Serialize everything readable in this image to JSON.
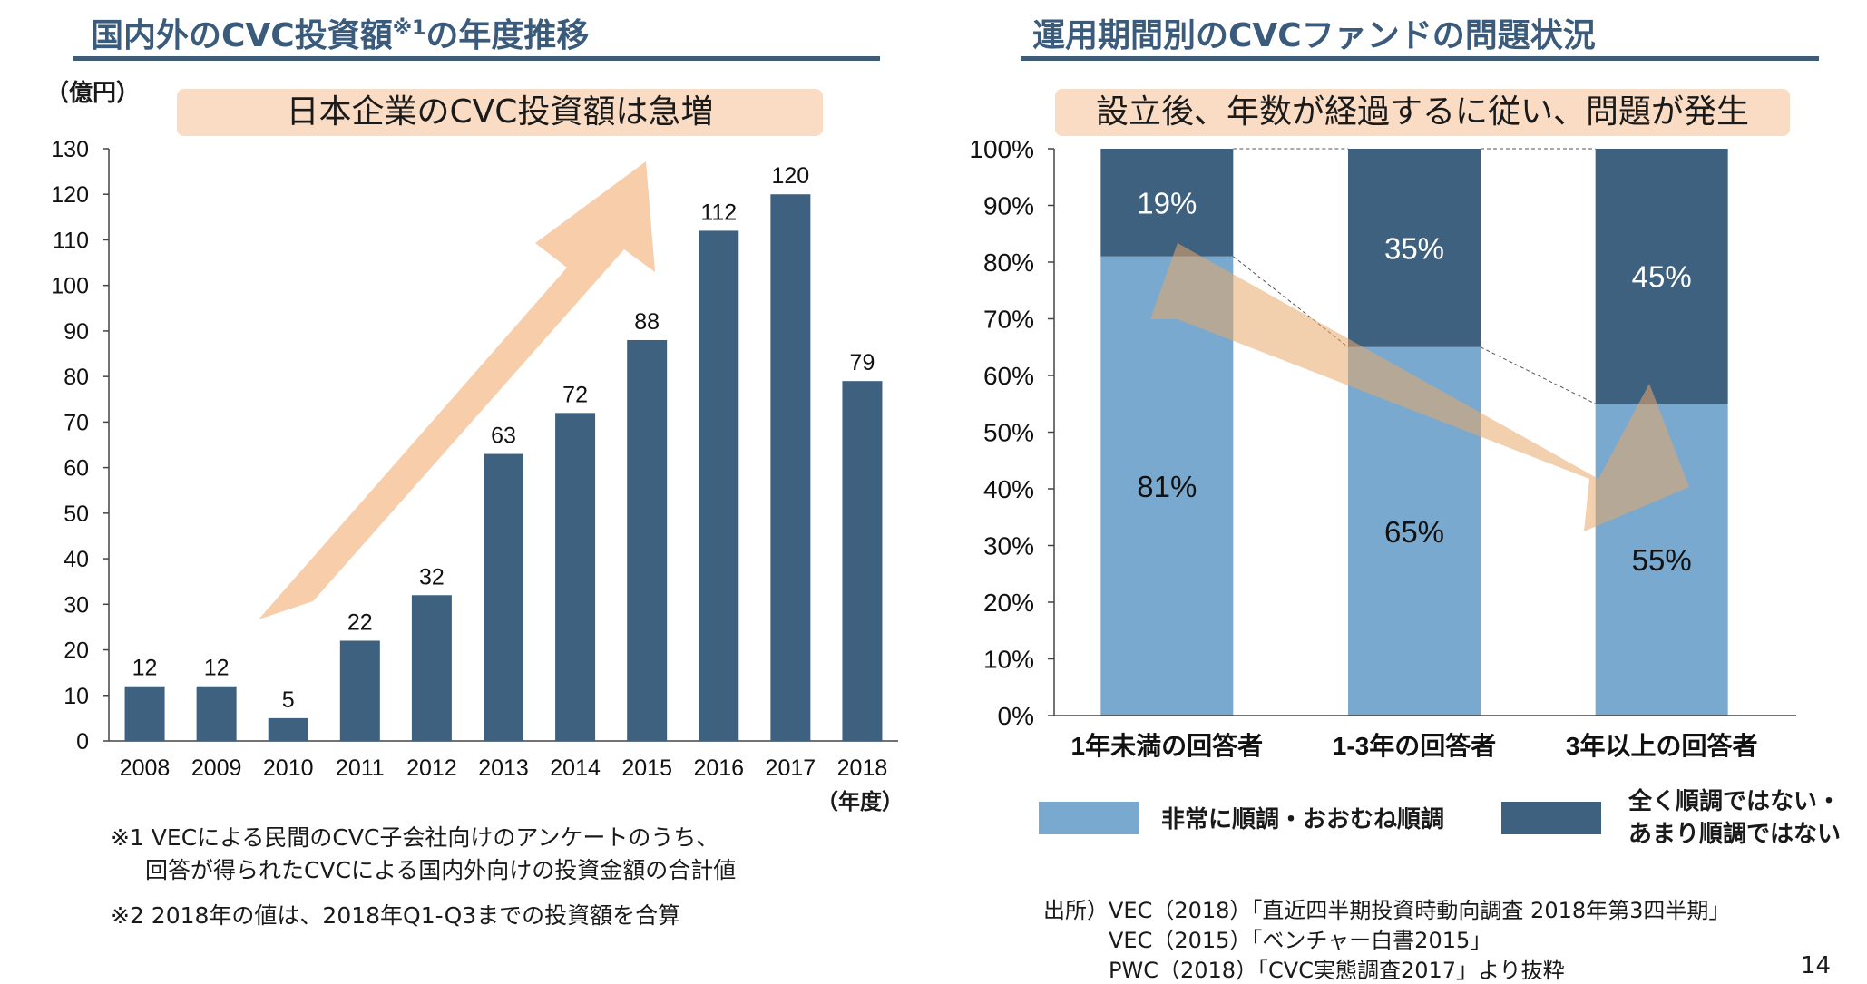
{
  "left": {
    "title": "国内外のCVC投資額",
    "title_sup": "※1",
    "title_suffix": "の年度推移",
    "unit_label": "（億円）",
    "banner": "日本企業のCVC投資額は急増",
    "x_unit_label": "（年度）",
    "notes": [
      "※1 VECによる民間のCVC子会社向けのアンケートのうち、",
      "回答が得られたCVCによる国内外向けの投資金額の合計値",
      "※2 2018年の値は、2018年Q1-Q3までの投資額を合算"
    ]
  },
  "right": {
    "title": "運用期間別のCVCファンドの問題状況",
    "banner": "設立後、年数が経過するに従い、問題が発生",
    "legend": [
      {
        "label": "非常に順調・おおむね順調",
        "color": "#7aa9cf"
      },
      {
        "label_line1": "全く順調ではない・",
        "label_line2": "あまり順調ではない",
        "color": "#3e6180"
      }
    ],
    "sources": [
      "出所）VEC（2018）「直近四半期投資時動向調査 2018年第3四半期」",
      "VEC（2015）「ベンチャー白書2015」",
      "PWC（2018）「CVC実態調査2017」より抜粋"
    ]
  },
  "page_number": "14",
  "chart_data": [
    {
      "type": "bar",
      "title": "国内外のCVC投資額の年度推移",
      "categories": [
        "2008",
        "2009",
        "2010",
        "2011",
        "2012",
        "2013",
        "2014",
        "2015",
        "2016",
        "2017",
        "2018"
      ],
      "values": [
        12,
        12,
        5,
        22,
        32,
        63,
        72,
        88,
        112,
        120,
        79
      ],
      "ylabel": "（億円）",
      "xlabel": "（年度）",
      "ylim": [
        0,
        130
      ],
      "yticks": [
        0,
        10,
        20,
        30,
        40,
        50,
        60,
        70,
        80,
        90,
        100,
        110,
        120,
        130
      ],
      "bar_color": "#3e6180",
      "grid": false
    },
    {
      "type": "bar",
      "stacked": true,
      "percent": true,
      "title": "運用期間別のCVCファンドの問題状況",
      "categories": [
        "1年未満の回答者",
        "1-3年の回答者",
        "3年以上の回答者"
      ],
      "series": [
        {
          "name": "非常に順調・おおむね順調",
          "values": [
            81,
            65,
            55
          ],
          "color": "#7aa9cf"
        },
        {
          "name": "全く順調ではない・あまり順調ではない",
          "values": [
            19,
            35,
            45
          ],
          "color": "#3e6180"
        }
      ],
      "ylim": [
        0,
        100
      ],
      "yticks": [
        "0%",
        "10%",
        "20%",
        "30%",
        "40%",
        "50%",
        "60%",
        "70%",
        "80%",
        "90%",
        "100%"
      ],
      "legend_position": "bottom",
      "grid": false
    }
  ]
}
